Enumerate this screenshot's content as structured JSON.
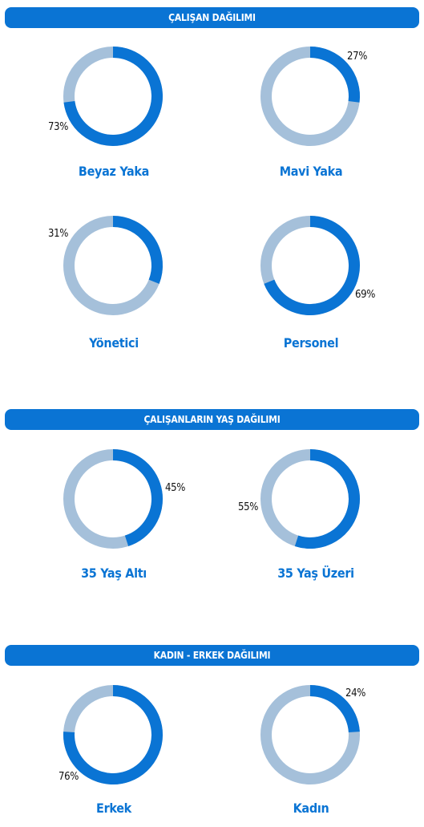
{
  "colors": {
    "accent": "#0a74d4",
    "track": "#a5c0da"
  },
  "sections": [
    {
      "title": "ÇALIŞAN DAĞILIMI"
    },
    {
      "title": "ÇALIŞANLARIN YAŞ DAĞILIMI"
    },
    {
      "title": "KADIN - ERKEK DAĞILIMI"
    }
  ],
  "chart_data": [
    {
      "type": "pie",
      "title": "Beyaz Yaka",
      "value": 73,
      "label": "73%"
    },
    {
      "type": "pie",
      "title": "Mavi Yaka",
      "value": 27,
      "label": "27%"
    },
    {
      "type": "pie",
      "title": "Yönetici",
      "value": 31,
      "label": "31%"
    },
    {
      "type": "pie",
      "title": "Personel",
      "value": 69,
      "label": "69%"
    },
    {
      "type": "pie",
      "title": "35 Yaş Altı",
      "value": 45,
      "label": "45%"
    },
    {
      "type": "pie",
      "title": "35 Yaş Üzeri",
      "value": 55,
      "label": "55%"
    },
    {
      "type": "pie",
      "title": "Erkek",
      "value": 76,
      "label": "76%"
    },
    {
      "type": "pie",
      "title": "Kadın",
      "value": 24,
      "label": "24%"
    }
  ]
}
